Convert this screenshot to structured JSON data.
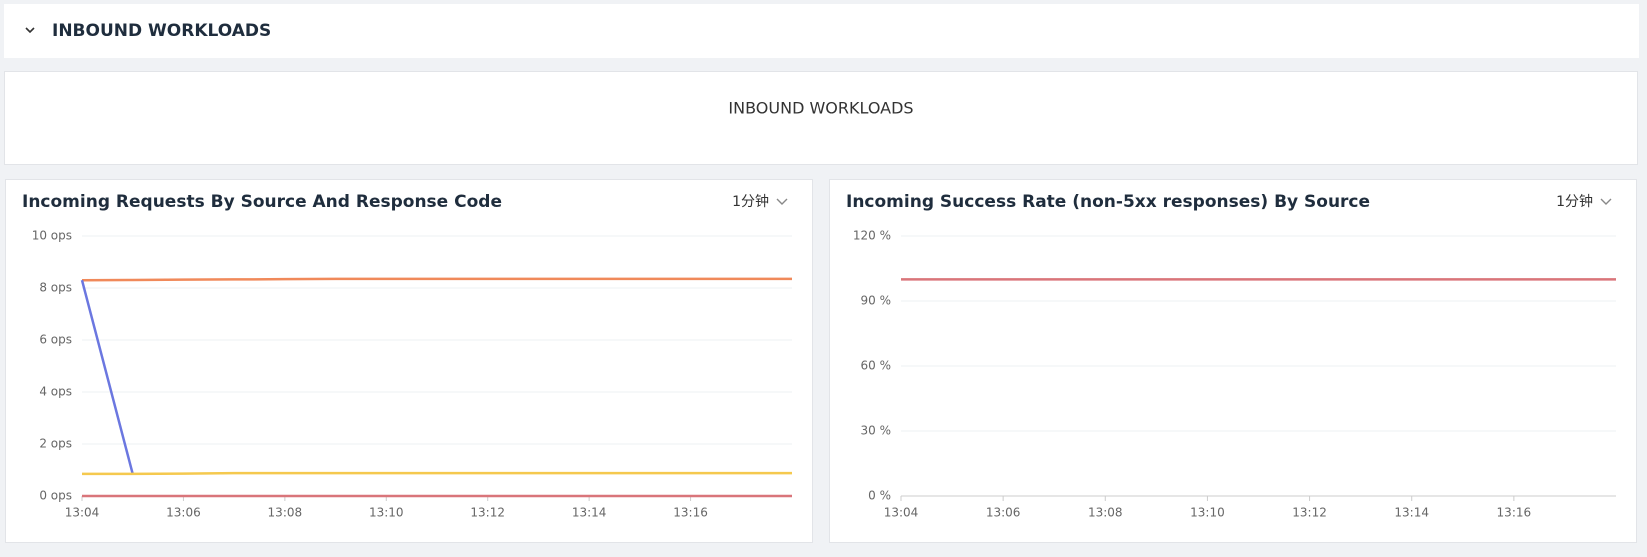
{
  "header": {
    "title": "INBOUND WORKLOADS"
  },
  "panel": {
    "text": "INBOUND WORKLOADS"
  },
  "chart_data": [
    {
      "type": "line",
      "title": "Incoming Requests By Source And Response Code",
      "interval": "1分钟",
      "x": [
        "13:04",
        "13:05",
        "13:06",
        "13:07",
        "13:08",
        "13:09",
        "13:10",
        "13:11",
        "13:12",
        "13:13",
        "13:14",
        "13:15",
        "13:16",
        "13:17",
        "13:18"
      ],
      "xlim": [
        "13:04",
        "13:18"
      ],
      "xticks": [
        "13:04",
        "13:06",
        "13:08",
        "13:10",
        "13:12",
        "13:14",
        "13:16"
      ],
      "ylim": [
        0,
        10
      ],
      "yticks": [
        {
          "value": 0,
          "label": "0 ops"
        },
        {
          "value": 2,
          "label": "2 ops"
        },
        {
          "value": 4,
          "label": "4 ops"
        },
        {
          "value": 6,
          "label": "6 ops"
        },
        {
          "value": 8,
          "label": "8 ops"
        },
        {
          "value": 10,
          "label": "10 ops"
        }
      ],
      "grid": true,
      "series": [
        {
          "color": "#f0895a",
          "values": [
            8.3,
            8.31,
            8.32,
            8.33,
            8.34,
            8.35,
            8.35,
            8.35,
            8.35,
            8.35,
            8.35,
            8.35,
            8.35,
            8.35,
            8.35
          ]
        },
        {
          "color": "#6b77e0",
          "values": [
            8.3,
            0.85,
            null,
            null,
            null,
            null,
            null,
            null,
            null,
            null,
            null,
            null,
            null,
            null,
            null
          ]
        },
        {
          "color": "#f5c94e",
          "values": [
            0.85,
            0.85,
            0.86,
            0.88,
            0.88,
            0.88,
            0.88,
            0.88,
            0.88,
            0.88,
            0.88,
            0.88,
            0.88,
            0.88,
            0.88
          ]
        },
        {
          "color": "#d9757a",
          "values": [
            0,
            0,
            0,
            0,
            0,
            0,
            0,
            0,
            0,
            0,
            0,
            0,
            0,
            0,
            0
          ]
        }
      ]
    },
    {
      "type": "line",
      "title": "Incoming Success Rate (non-5xx responses) By Source",
      "interval": "1分钟",
      "x": [
        "13:04",
        "13:05",
        "13:06",
        "13:07",
        "13:08",
        "13:09",
        "13:10",
        "13:11",
        "13:12",
        "13:13",
        "13:14",
        "13:15",
        "13:16",
        "13:17",
        "13:18"
      ],
      "xlim": [
        "13:04",
        "13:18"
      ],
      "xticks": [
        "13:04",
        "13:06",
        "13:08",
        "13:10",
        "13:12",
        "13:14",
        "13:16"
      ],
      "ylim": [
        0,
        120
      ],
      "yticks": [
        {
          "value": 0,
          "label": "0 %"
        },
        {
          "value": 30,
          "label": "30 %"
        },
        {
          "value": 60,
          "label": "60 %"
        },
        {
          "value": 90,
          "label": "90 %"
        },
        {
          "value": 120,
          "label": "120 %"
        }
      ],
      "grid": true,
      "series": [
        {
          "color": "#d9757a",
          "values": [
            100,
            100,
            100,
            100,
            100,
            100,
            100,
            100,
            100,
            100,
            100,
            100,
            100,
            100,
            100
          ]
        }
      ]
    }
  ]
}
